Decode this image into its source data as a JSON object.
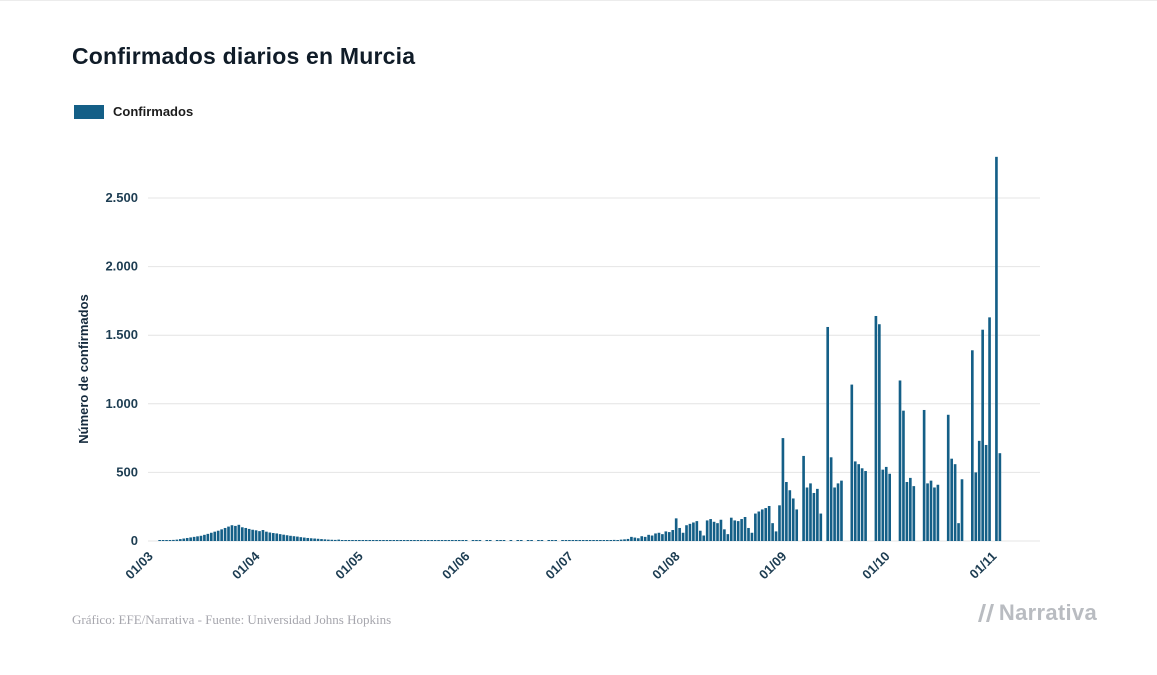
{
  "page": {
    "title": "Confirmados diarios en Murcia",
    "footer_credit": "Gráfico: EFE/Narrativa - Fuente: Universidad Johns Hopkins",
    "brand": "Narrativa"
  },
  "legend": {
    "label": "Confirmados",
    "color": "#145f87"
  },
  "chart_data": {
    "type": "bar",
    "title": "Confirmados diarios en Murcia",
    "xlabel": "",
    "ylabel": "Número de confirmados",
    "series_name": "Confirmados",
    "color": "#145f87",
    "grid": "horizontal",
    "legend_position": "top-left",
    "ylim": [
      0,
      2900
    ],
    "y_ticks": [
      0,
      500,
      1000,
      1500,
      2000,
      2500
    ],
    "y_tick_labels": [
      "0",
      "500",
      "1.000",
      "1.500",
      "2.000",
      "2.500"
    ],
    "x_tick_labels": [
      "01/03",
      "01/04",
      "01/05",
      "01/06",
      "01/07",
      "01/08",
      "01/09",
      "01/10",
      "01/11"
    ],
    "x_tick_indices": [
      0,
      31,
      61,
      92,
      122,
      153,
      184,
      214,
      245
    ],
    "start_date": "01/03",
    "frequency": "daily",
    "values": [
      0,
      0,
      0,
      1,
      2,
      3,
      5,
      8,
      10,
      14,
      18,
      22,
      26,
      30,
      34,
      38,
      45,
      52,
      60,
      68,
      75,
      85,
      95,
      105,
      115,
      110,
      118,
      100,
      95,
      88,
      82,
      78,
      72,
      80,
      68,
      62,
      58,
      55,
      50,
      46,
      42,
      38,
      35,
      32,
      28,
      25,
      22,
      20,
      18,
      16,
      14,
      12,
      10,
      9,
      8,
      10,
      7,
      6,
      5,
      4,
      3,
      4,
      3,
      5,
      2,
      3,
      2,
      6,
      3,
      2,
      1,
      2,
      3,
      1,
      2,
      4,
      2,
      1,
      1,
      2,
      1,
      3,
      1,
      2,
      1,
      1,
      2,
      1,
      1,
      1,
      2,
      1,
      1,
      0,
      1,
      2,
      1,
      0,
      1,
      1,
      0,
      1,
      2,
      1,
      0,
      1,
      0,
      1,
      1,
      0,
      2,
      1,
      0,
      1,
      1,
      0,
      1,
      2,
      1,
      0,
      1,
      1,
      2,
      1,
      3,
      2,
      1,
      2,
      4,
      3,
      2,
      5,
      4,
      6,
      5,
      8,
      7,
      10,
      12,
      15,
      30,
      25,
      20,
      35,
      30,
      45,
      40,
      55,
      60,
      50,
      70,
      65,
      80,
      165,
      95,
      60,
      115,
      125,
      135,
      145,
      75,
      40,
      150,
      160,
      140,
      130,
      155,
      85,
      50,
      170,
      150,
      145,
      160,
      175,
      95,
      60,
      200,
      215,
      230,
      240,
      255,
      130,
      70,
      260,
      750,
      430,
      370,
      310,
      230,
      0,
      620,
      390,
      420,
      350,
      380,
      200,
      0,
      1560,
      610,
      390,
      420,
      440,
      0,
      0,
      1140,
      580,
      560,
      530,
      510,
      0,
      0,
      1640,
      1580,
      520,
      540,
      490,
      0,
      0,
      1170,
      950,
      430,
      460,
      400,
      0,
      0,
      955,
      420,
      440,
      390,
      410,
      0,
      0,
      920,
      600,
      560,
      130,
      450,
      0,
      0,
      1390,
      500,
      730,
      1540,
      700,
      1630,
      0,
      2800,
      640
    ]
  }
}
